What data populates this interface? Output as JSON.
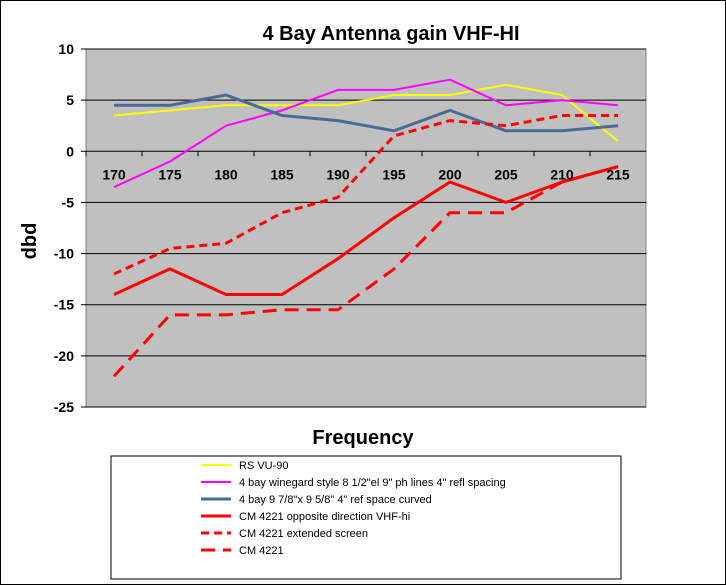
{
  "chart_data": {
    "type": "line",
    "title": "4 Bay Antenna gain VHF-HI",
    "xlabel": "Frequency",
    "ylabel": "dbd",
    "ylim": [
      -25,
      10
    ],
    "y_ticks": [
      "10",
      "5",
      "0",
      "-5",
      "-10",
      "-15",
      "-20",
      "-25"
    ],
    "categories": [
      "170",
      "175",
      "180",
      "185",
      "190",
      "195",
      "200",
      "205",
      "210",
      "215"
    ],
    "grid": true,
    "legend_position": "bottom",
    "series": [
      {
        "name": "RS VU-90",
        "color": "#FFFF00",
        "style": "solid",
        "width": 2,
        "values": [
          3.5,
          4,
          4.5,
          4.5,
          4.5,
          5.5,
          5.5,
          6.5,
          5.5,
          1
        ]
      },
      {
        "name": "4 bay winegard style 8 1/2\"el 9\" ph lines 4\" refl spacing",
        "color": "#FF00FF",
        "style": "solid",
        "width": 2,
        "values": [
          -3.5,
          -1,
          2.5,
          4,
          6,
          6,
          7,
          4.5,
          5,
          4.5
        ]
      },
      {
        "name": "4 bay 9 7/8\"x 9 5/8\"  4\" ref space curved",
        "color": "#4A6A96",
        "style": "solid",
        "width": 3,
        "values": [
          4.5,
          4.5,
          5.5,
          3.5,
          3,
          2,
          4,
          2,
          2,
          2.5
        ]
      },
      {
        "name": "CM 4221   opposite direction VHF-hi",
        "color": "#FF0000",
        "style": "solid",
        "width": 3,
        "values": [
          -14,
          -11.5,
          -14,
          -14,
          -10.5,
          -6.5,
          -3,
          -5,
          -3,
          -1.5
        ]
      },
      {
        "name": "CM 4221    extended screen",
        "color": "#FF0000",
        "style": "dashed-short",
        "width": 3,
        "values": [
          -12,
          -9.5,
          -9,
          -6,
          -4.5,
          1.5,
          3,
          2.5,
          3.5,
          3.5
        ]
      },
      {
        "name": "CM 4221",
        "color": "#FF0000",
        "style": "dashed-long",
        "width": 3,
        "values": [
          -22,
          -16,
          -16,
          -15.5,
          -15.5,
          -11.5,
          -6,
          -6,
          -3,
          -1.5
        ]
      }
    ]
  }
}
